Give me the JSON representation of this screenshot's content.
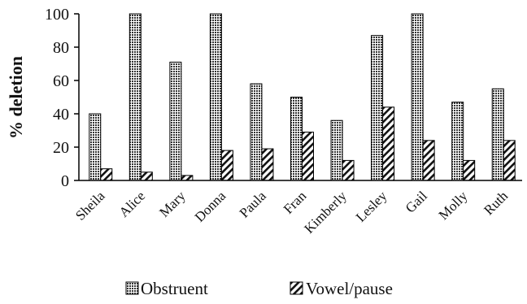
{
  "chart_data": {
    "type": "bar",
    "title": "",
    "xlabel": "",
    "ylabel": "% deletion",
    "ylim": [
      0,
      100
    ],
    "yticks": [
      0,
      20,
      40,
      60,
      80,
      100
    ],
    "grid": false,
    "legend_position": "bottom",
    "categories": [
      "Sheila",
      "Alice",
      "Mary",
      "Donna",
      "Paula",
      "Fran",
      "Kimberly",
      "Lesley",
      "Gail",
      "Molly",
      "Ruth"
    ],
    "series": [
      {
        "name": "Obstruent",
        "pattern": "dotted-grid",
        "values": [
          40,
          100,
          71,
          100,
          58,
          50,
          36,
          87,
          100,
          47,
          55
        ]
      },
      {
        "name": "Vowel/pause",
        "pattern": "diagonal-hatch",
        "values": [
          7,
          5,
          3,
          18,
          19,
          29,
          12,
          44,
          24,
          12,
          24
        ]
      }
    ],
    "colors": {
      "bar_outline": "#000000",
      "axis": "#000000"
    }
  }
}
